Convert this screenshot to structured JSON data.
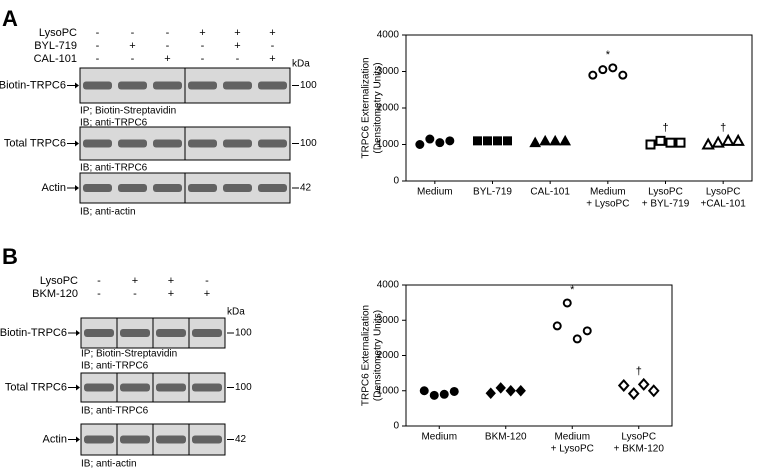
{
  "figure": {
    "panels": [
      {
        "letter": "A",
        "kda": "kDa",
        "treatments": [
          {
            "label": "LysoPC",
            "signs": [
              "-",
              "-",
              "-",
              "+",
              "+",
              "+"
            ]
          },
          {
            "label": "BYL-719",
            "signs": [
              "-",
              "+",
              "-",
              "-",
              "+",
              "-"
            ]
          },
          {
            "label": "CAL-101",
            "signs": [
              "-",
              "-",
              "+",
              "-",
              "-",
              "+"
            ]
          }
        ],
        "blots": [
          {
            "label": "Biotin-TRPC6",
            "notes": [
              "IP; Biotin-Streptavidin",
              "IB; anti-TRPC6"
            ],
            "size": "100"
          },
          {
            "label": "Total TRPC6",
            "notes": [
              "IB; anti-TRPC6"
            ],
            "size": "100"
          },
          {
            "label": "Actin",
            "notes": [
              "IB; anti-actin"
            ],
            "size": "42"
          }
        ]
      },
      {
        "letter": "B",
        "kda": "kDa",
        "treatments": [
          {
            "label": "LysoPC",
            "signs": [
              "-",
              "+",
              "+",
              "-"
            ]
          },
          {
            "label": "BKM-120",
            "signs": [
              "-",
              "-",
              "+",
              "+"
            ]
          }
        ],
        "blots": [
          {
            "label": "Biotin-TRPC6",
            "notes": [
              "IP; Biotin-Streptavidin",
              "IB; anti-TRPC6"
            ],
            "size": "100"
          },
          {
            "label": "Total TRPC6",
            "notes": [
              "IB; anti-TRPC6"
            ],
            "size": "100"
          },
          {
            "label": "Actin",
            "notes": [
              "IB; anti-actin"
            ],
            "size": "42"
          }
        ]
      }
    ]
  },
  "chart_data": [
    {
      "type": "scatter",
      "y_label": [
        "TRPC6 Externalization",
        "(Densitometry Units)"
      ],
      "categories": [
        [
          "Medium"
        ],
        [
          "BYL-719"
        ],
        [
          "CAL-101"
        ],
        [
          "Medium",
          "+ LysoPC"
        ],
        [
          "LysoPC",
          "+ BYL-719"
        ],
        [
          "LysoPC",
          "+CAL-101"
        ]
      ],
      "values": [
        [
          1000,
          1150,
          1050,
          1100
        ],
        [
          1100,
          1100,
          1100,
          1100
        ],
        [
          1050,
          1100,
          1100,
          1100
        ],
        [
          2900,
          3050,
          3100,
          2900
        ],
        [
          1000,
          1100,
          1050,
          1050
        ],
        [
          1000,
          1050,
          1100,
          1100
        ]
      ],
      "markers": [
        "circle",
        "square",
        "triangle",
        "circle",
        "square",
        "triangle"
      ],
      "filled": [
        true,
        true,
        true,
        false,
        false,
        false
      ],
      "annotations": [
        null,
        null,
        null,
        "*",
        "†",
        "†"
      ],
      "color": "#000000",
      "ylim": [
        0,
        4000
      ],
      "yticks": [
        0,
        1000,
        2000,
        3000,
        4000
      ]
    },
    {
      "type": "scatter",
      "y_label": [
        "TRPC6 Externalization",
        "(Densitometry Units)"
      ],
      "categories": [
        [
          "Medium"
        ],
        [
          "BKM-120"
        ],
        [
          "Medium",
          "+ LysoPC"
        ],
        [
          "LysoPC",
          "+ BKM-120"
        ]
      ],
      "values": [
        [
          1000,
          870,
          900,
          980
        ],
        [
          930,
          1080,
          1000,
          1000
        ],
        [
          2840,
          3490,
          2470,
          2700
        ],
        [
          1150,
          920,
          1180,
          1000
        ]
      ],
      "markers": [
        "circle",
        "diamond",
        "circle",
        "diamond"
      ],
      "filled": [
        true,
        true,
        false,
        false
      ],
      "annotations": [
        null,
        null,
        "*",
        "†"
      ],
      "color": "#000000",
      "ylim": [
        0,
        4000
      ],
      "yticks": [
        0,
        1000,
        2000,
        3000,
        4000
      ]
    }
  ]
}
